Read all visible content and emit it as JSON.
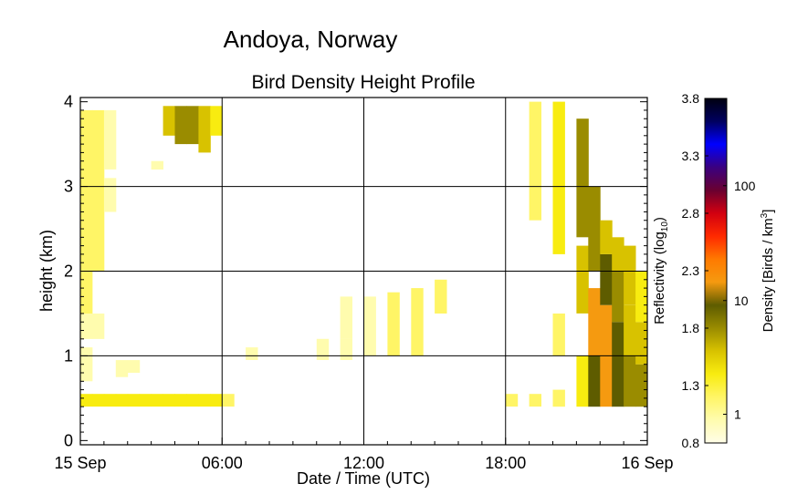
{
  "chart_data": {
    "type": "heatmap",
    "suptitle": "Andoya, Norway",
    "title": "Bird Density Height Profile",
    "xlabel": "Date / Time (UTC)",
    "ylabel": "height (km)",
    "x_ticks": [
      {
        "hour": 0,
        "label": "15 Sep"
      },
      {
        "hour": 6,
        "label": "06:00"
      },
      {
        "hour": 12,
        "label": "12:00"
      },
      {
        "hour": 18,
        "label": "18:00"
      },
      {
        "hour": 24,
        "label": "16 Sep"
      }
    ],
    "y_ticks": [
      {
        "km": 0,
        "label": "0"
      },
      {
        "km": 1,
        "label": "1"
      },
      {
        "km": 2,
        "label": "2"
      },
      {
        "km": 3,
        "label": "3"
      },
      {
        "km": 4,
        "label": "4"
      }
    ],
    "xlim_hours": [
      0,
      24
    ],
    "ylim_km": [
      -0.05,
      4.05
    ],
    "grid": true,
    "colorbar": {
      "left_label_main": "Reflectivity (log",
      "left_label_sub": "10",
      "left_label_end": ")",
      "right_label_main": "Density [Birds / km",
      "right_label_sup": "3",
      "right_label_end": "]",
      "left_ticks": [
        "0.8",
        "1.3",
        "1.8",
        "2.3",
        "2.8",
        "3.3",
        "3.8"
      ],
      "right_ticks": [
        "1",
        "10",
        "100"
      ],
      "log_range": [
        0.8,
        3.8
      ],
      "colormap": [
        "#fffde8",
        "#fffcae",
        "#fff566",
        "#f8ec10",
        "#d8c200",
        "#9a8c00",
        "#5e5c00",
        "#f59a10",
        "#ff7a00",
        "#ff2a00",
        "#d20010",
        "#6a0030",
        "#3a0080",
        "#0000ff",
        "#000060",
        "#000010"
      ]
    },
    "density_columns": [
      {
        "t": 0.0,
        "cells": [
          [
            0.4,
            0.55,
            1.4
          ],
          [
            0.7,
            1.1,
            1.1
          ],
          [
            1.2,
            1.5,
            1.1
          ],
          [
            1.5,
            3.0,
            1.2
          ],
          [
            3.0,
            3.9,
            1.3
          ]
        ]
      },
      {
        "t": 0.5,
        "cells": [
          [
            0.4,
            0.55,
            1.4
          ],
          [
            1.2,
            1.5,
            1.1
          ],
          [
            2.0,
            3.9,
            1.2
          ]
        ]
      },
      {
        "t": 1.0,
        "cells": [
          [
            0.4,
            0.55,
            1.4
          ],
          [
            2.7,
            3.1,
            1.1
          ],
          [
            3.2,
            3.9,
            1.1
          ]
        ]
      },
      {
        "t": 1.5,
        "cells": [
          [
            0.4,
            0.55,
            1.4
          ],
          [
            0.75,
            0.95,
            1.1
          ]
        ]
      },
      {
        "t": 2.0,
        "cells": [
          [
            0.4,
            0.55,
            1.4
          ],
          [
            0.8,
            0.95,
            1.1
          ]
        ]
      },
      {
        "t": 2.5,
        "cells": [
          [
            0.4,
            0.55,
            1.4
          ]
        ]
      },
      {
        "t": 3.0,
        "cells": [
          [
            0.4,
            0.55,
            1.4
          ],
          [
            3.2,
            3.3,
            1.1
          ]
        ]
      },
      {
        "t": 3.5,
        "cells": [
          [
            0.4,
            0.55,
            1.4
          ],
          [
            3.6,
            3.95,
            1.6
          ]
        ]
      },
      {
        "t": 4.0,
        "cells": [
          [
            0.4,
            0.55,
            1.4
          ],
          [
            3.5,
            3.95,
            1.8
          ]
        ]
      },
      {
        "t": 4.5,
        "cells": [
          [
            0.4,
            0.55,
            1.4
          ],
          [
            3.5,
            3.95,
            1.9
          ]
        ]
      },
      {
        "t": 5.0,
        "cells": [
          [
            0.4,
            0.55,
            1.4
          ],
          [
            3.4,
            3.95,
            1.7
          ]
        ]
      },
      {
        "t": 5.5,
        "cells": [
          [
            0.4,
            0.55,
            1.4
          ],
          [
            3.6,
            3.95,
            1.4
          ]
        ]
      },
      {
        "t": 6.0,
        "cells": [
          [
            0.4,
            0.55,
            1.3
          ]
        ]
      },
      {
        "t": 7.0,
        "cells": [
          [
            0.95,
            1.1,
            1.1
          ]
        ]
      },
      {
        "t": 10.0,
        "cells": [
          [
            0.95,
            1.2,
            1.1
          ]
        ]
      },
      {
        "t": 11.0,
        "cells": [
          [
            0.95,
            1.2,
            1.1
          ],
          [
            1.2,
            1.7,
            1.1
          ]
        ]
      },
      {
        "t": 12.0,
        "cells": [
          [
            1.0,
            1.7,
            1.1
          ]
        ]
      },
      {
        "t": 13.0,
        "cells": [
          [
            1.0,
            1.75,
            1.2
          ]
        ]
      },
      {
        "t": 14.0,
        "cells": [
          [
            1.0,
            1.8,
            1.2
          ]
        ]
      },
      {
        "t": 15.0,
        "cells": [
          [
            1.5,
            1.9,
            1.2
          ]
        ]
      },
      {
        "t": 18.0,
        "cells": [
          [
            0.4,
            0.55,
            1.2
          ]
        ]
      },
      {
        "t": 19.0,
        "cells": [
          [
            0.4,
            0.55,
            1.2
          ],
          [
            2.6,
            4.0,
            1.2
          ]
        ]
      },
      {
        "t": 20.0,
        "cells": [
          [
            0.4,
            0.6,
            1.3
          ],
          [
            1.0,
            1.5,
            1.2
          ],
          [
            2.2,
            4.0,
            1.4
          ]
        ]
      },
      {
        "t": 21.0,
        "cells": [
          [
            0.4,
            1.0,
            1.4
          ],
          [
            1.5,
            2.3,
            1.6
          ],
          [
            2.4,
            3.8,
            1.8
          ]
        ]
      },
      {
        "t": 21.5,
        "cells": [
          [
            0.4,
            1.0,
            2.0
          ],
          [
            1.0,
            1.8,
            2.2
          ],
          [
            2.0,
            3.0,
            1.8
          ]
        ]
      },
      {
        "t": 22.0,
        "cells": [
          [
            0.4,
            1.6,
            2.2
          ],
          [
            1.6,
            2.2,
            2.1
          ],
          [
            2.2,
            2.6,
            1.7
          ]
        ]
      },
      {
        "t": 22.5,
        "cells": [
          [
            0.4,
            1.4,
            2.0
          ],
          [
            1.4,
            2.0,
            1.9
          ],
          [
            2.0,
            2.4,
            1.6
          ]
        ]
      },
      {
        "t": 23.0,
        "cells": [
          [
            0.4,
            1.0,
            1.9
          ],
          [
            1.0,
            1.6,
            1.7
          ],
          [
            1.6,
            2.3,
            1.6
          ]
        ]
      },
      {
        "t": 23.5,
        "cells": [
          [
            0.4,
            0.9,
            1.8
          ],
          [
            0.9,
            1.4,
            1.6
          ],
          [
            1.4,
            2.0,
            1.5
          ]
        ]
      }
    ]
  }
}
